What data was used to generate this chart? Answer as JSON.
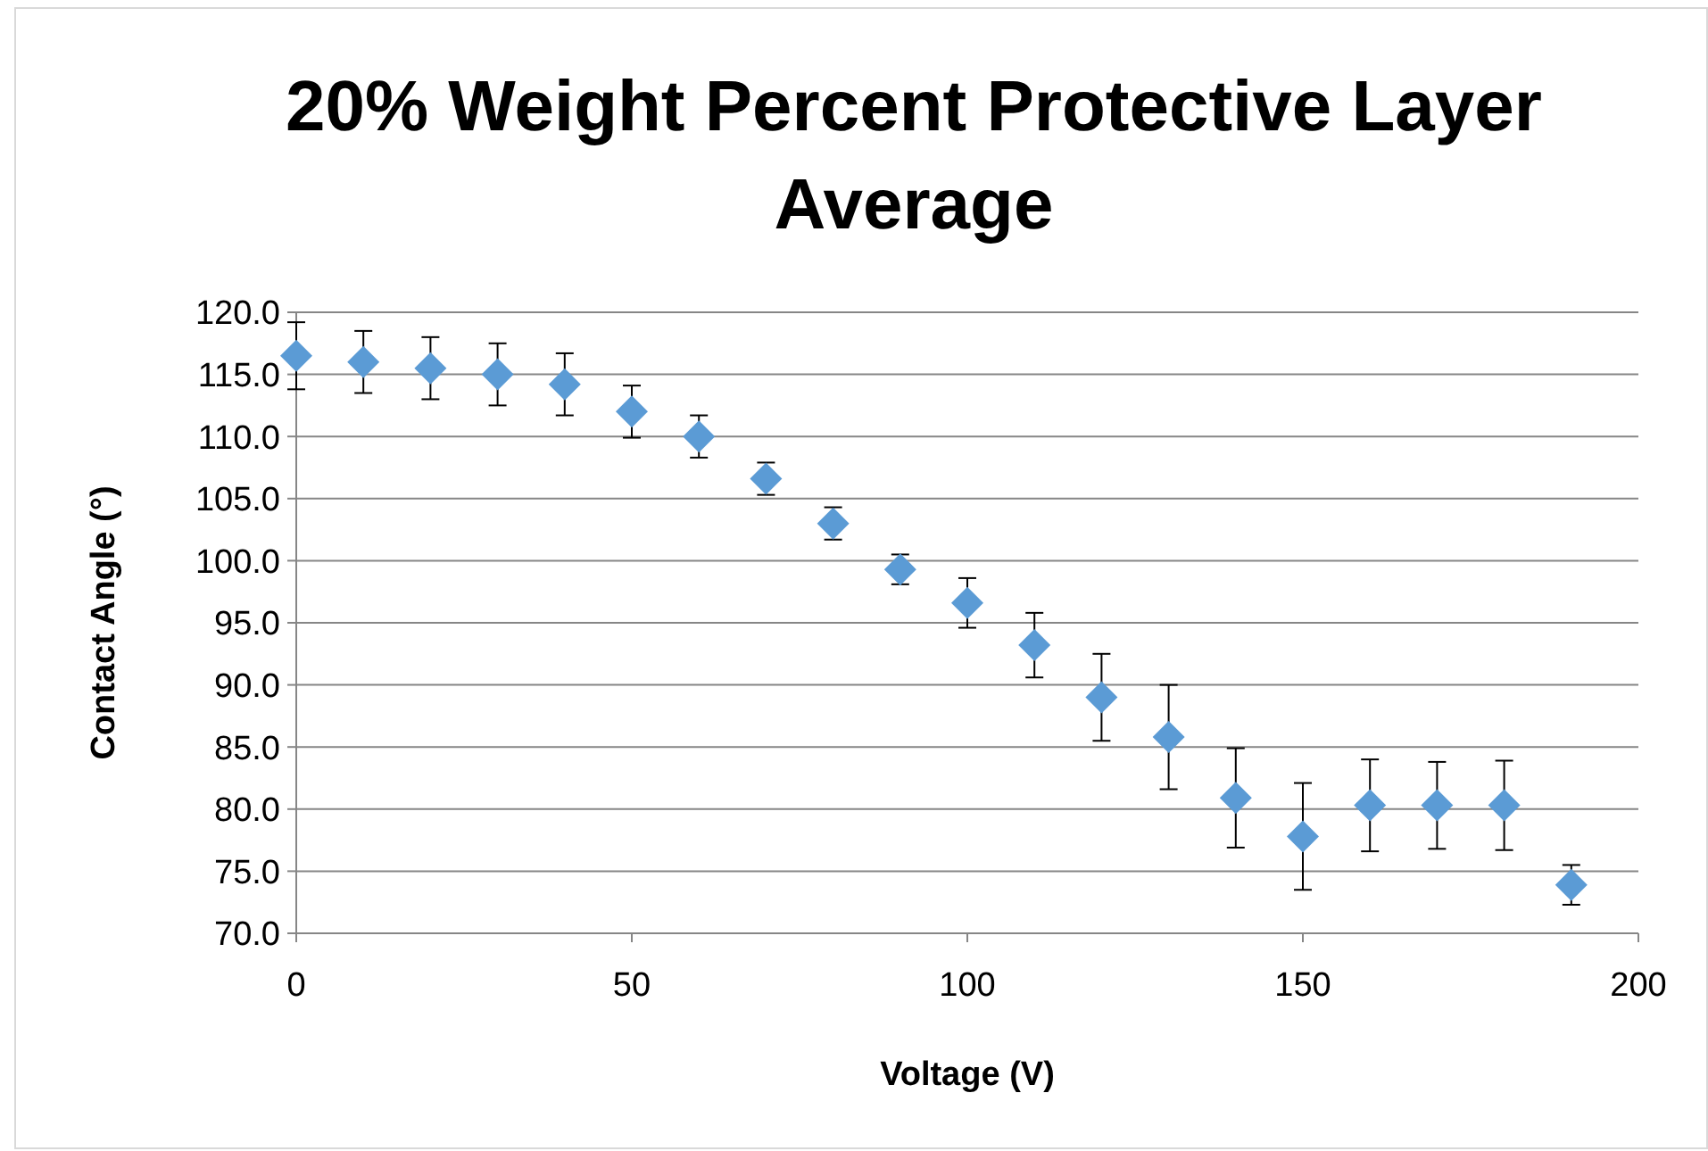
{
  "chart_data": {
    "type": "scatter",
    "title": "20% Weight Percent Protective Layer Average",
    "xlabel": "Voltage (V)",
    "ylabel": "Contact Angle (°)",
    "x": [
      0,
      10,
      20,
      30,
      40,
      50,
      60,
      70,
      80,
      90,
      100,
      110,
      120,
      130,
      140,
      150,
      160,
      170,
      180,
      190
    ],
    "values": [
      116.5,
      116.0,
      115.5,
      115.0,
      114.2,
      112.0,
      110.0,
      106.6,
      103.0,
      99.3,
      96.6,
      93.2,
      89.0,
      85.8,
      80.9,
      77.8,
      80.3,
      80.3,
      80.3,
      73.9
    ],
    "errors": [
      2.7,
      2.5,
      2.5,
      2.5,
      2.5,
      2.1,
      1.7,
      1.3,
      1.3,
      1.2,
      2.0,
      2.6,
      3.5,
      4.2,
      4.0,
      4.3,
      3.7,
      3.5,
      3.6,
      1.6
    ],
    "color": "#5b9bd5",
    "marker": "diamond",
    "xlim": [
      0,
      200
    ],
    "xticks": [
      0,
      50,
      100,
      150,
      200
    ],
    "ylim": [
      70,
      120
    ],
    "yticks": [
      {
        "value": 70,
        "label": "70.0"
      },
      {
        "value": 75,
        "label": "75.0"
      },
      {
        "value": 80,
        "label": "80.0"
      },
      {
        "value": 85,
        "label": "85.0"
      },
      {
        "value": 90,
        "label": "90.0"
      },
      {
        "value": 95,
        "label": "95.0"
      },
      {
        "value": 100,
        "label": "100.0"
      },
      {
        "value": 105,
        "label": "105.0"
      },
      {
        "value": 110,
        "label": "110.0"
      },
      {
        "value": 115,
        "label": "115.0"
      },
      {
        "value": 120,
        "label": "120.0"
      }
    ],
    "grid": "y"
  }
}
